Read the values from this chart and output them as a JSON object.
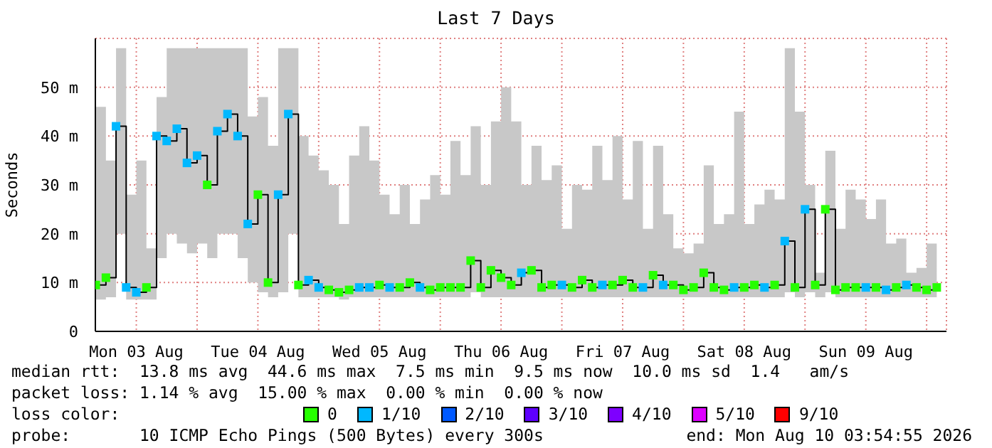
{
  "chart_data": {
    "type": "step",
    "title": "Last 7 Days",
    "ylabel": "Seconds",
    "legend_title": "loss color:",
    "legend": "bottom",
    "grid": true,
    "x": [
      "2026-08-03T04:00",
      "2026-08-03T06:00",
      "2026-08-03T08:00",
      "2026-08-03T10:00",
      "2026-08-03T12:00",
      "2026-08-03T14:00",
      "2026-08-03T16:00",
      "2026-08-03T18:00",
      "2026-08-03T20:00",
      "2026-08-03T22:00",
      "2026-08-04T00:00",
      "2026-08-04T02:00",
      "2026-08-04T04:00",
      "2026-08-04T06:00",
      "2026-08-04T08:00",
      "2026-08-04T10:00",
      "2026-08-04T12:00",
      "2026-08-04T14:00",
      "2026-08-04T16:00",
      "2026-08-04T18:00",
      "2026-08-04T20:00",
      "2026-08-04T22:00",
      "2026-08-05T00:00",
      "2026-08-05T02:00",
      "2026-08-05T04:00",
      "2026-08-05T06:00",
      "2026-08-05T08:00",
      "2026-08-05T10:00",
      "2026-08-05T12:00",
      "2026-08-05T14:00",
      "2026-08-05T16:00",
      "2026-08-05T18:00",
      "2026-08-05T20:00",
      "2026-08-05T22:00",
      "2026-08-06T00:00",
      "2026-08-06T02:00",
      "2026-08-06T04:00",
      "2026-08-06T06:00",
      "2026-08-06T08:00",
      "2026-08-06T10:00",
      "2026-08-06T12:00",
      "2026-08-06T14:00",
      "2026-08-06T16:00",
      "2026-08-06T18:00",
      "2026-08-06T20:00",
      "2026-08-06T22:00",
      "2026-08-07T00:00",
      "2026-08-07T02:00",
      "2026-08-07T04:00",
      "2026-08-07T06:00",
      "2026-08-07T08:00",
      "2026-08-07T10:00",
      "2026-08-07T12:00",
      "2026-08-07T14:00",
      "2026-08-07T16:00",
      "2026-08-07T18:00",
      "2026-08-07T20:00",
      "2026-08-07T22:00",
      "2026-08-08T00:00",
      "2026-08-08T02:00",
      "2026-08-08T04:00",
      "2026-08-08T06:00",
      "2026-08-08T08:00",
      "2026-08-08T10:00",
      "2026-08-08T12:00",
      "2026-08-08T14:00",
      "2026-08-08T16:00",
      "2026-08-08T18:00",
      "2026-08-08T20:00",
      "2026-08-08T22:00",
      "2026-08-09T00:00",
      "2026-08-09T02:00",
      "2026-08-09T04:00",
      "2026-08-09T06:00",
      "2026-08-09T08:00",
      "2026-08-09T10:00",
      "2026-08-09T12:00",
      "2026-08-09T14:00",
      "2026-08-09T16:00",
      "2026-08-09T18:00",
      "2026-08-09T20:00",
      "2026-08-09T22:00",
      "2026-08-10T00:00",
      "2026-08-10T02:00"
    ],
    "xlim": [
      "2026-08-03T03:55",
      "2026-08-10T03:55"
    ],
    "xticks": [
      {
        "value": "2026-08-03T12:00",
        "label": "Mon 03 Aug"
      },
      {
        "value": "2026-08-04T00:00",
        "label": null
      },
      {
        "value": "2026-08-04T12:00",
        "label": "Tue 04 Aug"
      },
      {
        "value": "2026-08-05T00:00",
        "label": null
      },
      {
        "value": "2026-08-05T12:00",
        "label": "Wed 05 Aug"
      },
      {
        "value": "2026-08-06T00:00",
        "label": null
      },
      {
        "value": "2026-08-06T12:00",
        "label": "Thu 06 Aug"
      },
      {
        "value": "2026-08-07T00:00",
        "label": null
      },
      {
        "value": "2026-08-07T12:00",
        "label": "Fri 07 Aug"
      },
      {
        "value": "2026-08-08T00:00",
        "label": null
      },
      {
        "value": "2026-08-08T12:00",
        "label": "Sat 08 Aug"
      },
      {
        "value": "2026-08-09T00:00",
        "label": null
      },
      {
        "value": "2026-08-09T12:00",
        "label": "Sun 09 Aug"
      },
      {
        "value": "2026-08-10T00:00",
        "label": null
      }
    ],
    "ylim": [
      0,
      60
    ],
    "yticks": [
      {
        "value": 0,
        "label": "0"
      },
      {
        "value": 10,
        "label": "10 m"
      },
      {
        "value": 20,
        "label": "20 m"
      },
      {
        "value": 30,
        "label": "30 m"
      },
      {
        "value": 40,
        "label": "40 m"
      },
      {
        "value": 50,
        "label": "50 m"
      }
    ],
    "series": [
      {
        "color": "#000000",
        "values": [
          9.5,
          11,
          42,
          9,
          8,
          9,
          40,
          39,
          41.5,
          34.5,
          36,
          30,
          41,
          44.5,
          40,
          22,
          28,
          10,
          28,
          44.5,
          9.5,
          10.5,
          9,
          8.5,
          8,
          8.5,
          9,
          9,
          9.5,
          9,
          9,
          10,
          9,
          8.5,
          9,
          9,
          9,
          14.5,
          9,
          12.5,
          11,
          9.5,
          12,
          12.5,
          9,
          9.5,
          9.5,
          9,
          10.5,
          9,
          9.5,
          9.5,
          10.5,
          9,
          9,
          11.5,
          9.5,
          9.5,
          8.5,
          9,
          12,
          9,
          8.5,
          9,
          9,
          9.5,
          9,
          9.5,
          18.5,
          9,
          25,
          9.5,
          25,
          8.5,
          9,
          9,
          9,
          9,
          8.5,
          9,
          9.5,
          9,
          8.5,
          9
        ],
        "lower": [
          6.5,
          7,
          20,
          6.5,
          6.5,
          6.5,
          15,
          20,
          18,
          16,
          18,
          15,
          20,
          20,
          15,
          10,
          8,
          7,
          8,
          20,
          7,
          7,
          7,
          7,
          6.5,
          7,
          7,
          7,
          7,
          7,
          7,
          7,
          7,
          7,
          7,
          7,
          7,
          8,
          7,
          7,
          7,
          7,
          7,
          7,
          7,
          7,
          7,
          7,
          7,
          7,
          7,
          7,
          7,
          7,
          7,
          7,
          7,
          7,
          7,
          7,
          7,
          7,
          7,
          7,
          7,
          7,
          7,
          7,
          8,
          7,
          8,
          7,
          8,
          7,
          7,
          7,
          7,
          7,
          7,
          7,
          7,
          7,
          7,
          7
        ],
        "upper": [
          46,
          35,
          58,
          28,
          35,
          17,
          48,
          58,
          58,
          58,
          58,
          58,
          58,
          58,
          58,
          44,
          48,
          38,
          58,
          58,
          40,
          36,
          33,
          30,
          22,
          36,
          42,
          35,
          28,
          24,
          30,
          22,
          27,
          32,
          28,
          39,
          32,
          42,
          30,
          43,
          50,
          43,
          30,
          38,
          31,
          34,
          21,
          30,
          29,
          38,
          31,
          40,
          27,
          39,
          21,
          38,
          24,
          17,
          16,
          18,
          34,
          22,
          24,
          45,
          22,
          26,
          29,
          27,
          58,
          45,
          30,
          12,
          37,
          21,
          29,
          27,
          23,
          27,
          18,
          19,
          12,
          13,
          18,
          28
        ]
      },
      {
        "type": "scatter",
        "marker": "square",
        "name": "0",
        "color": "#26ff00",
        "values": [
          9.5,
          11,
          null,
          null,
          null,
          9,
          null,
          null,
          null,
          null,
          null,
          30,
          null,
          null,
          null,
          null,
          28,
          10,
          null,
          null,
          9.5,
          null,
          null,
          8.5,
          8,
          8.5,
          null,
          null,
          9.5,
          null,
          9,
          10,
          null,
          8.5,
          9,
          9,
          9,
          14.5,
          9,
          12.5,
          11,
          9.5,
          null,
          12.5,
          9,
          9.5,
          null,
          9,
          10.5,
          9,
          null,
          9.5,
          10.5,
          9,
          null,
          11.5,
          null,
          9.5,
          8.5,
          9,
          12,
          9,
          8.5,
          null,
          9,
          9.5,
          null,
          9.5,
          null,
          9,
          null,
          9.5,
          25,
          8.5,
          9,
          9,
          null,
          9,
          null,
          9,
          null,
          9,
          8.5,
          9
        ]
      },
      {
        "type": "scatter",
        "marker": "square",
        "name": "1/10",
        "color": "#00b8ff",
        "values": [
          null,
          null,
          42,
          9,
          8,
          null,
          40,
          39,
          41.5,
          34.5,
          36,
          null,
          41,
          44.5,
          40,
          22,
          null,
          null,
          28,
          44.5,
          null,
          10.5,
          9,
          null,
          null,
          null,
          9,
          9,
          null,
          9,
          null,
          null,
          9,
          null,
          null,
          null,
          null,
          null,
          null,
          null,
          null,
          null,
          12,
          null,
          null,
          null,
          9.5,
          null,
          null,
          null,
          9.5,
          null,
          null,
          null,
          9,
          null,
          9.5,
          null,
          null,
          null,
          null,
          null,
          null,
          9,
          null,
          null,
          9,
          null,
          18.5,
          null,
          25,
          null,
          null,
          null,
          null,
          null,
          9,
          null,
          8.5,
          null,
          9.5,
          null,
          null,
          null
        ]
      },
      {
        "type": "scatter",
        "marker": "square",
        "name": "2/10",
        "color": "#0059ff",
        "values": [
          null,
          null,
          null,
          null,
          null,
          null,
          null,
          null,
          null,
          null,
          null,
          null,
          null,
          null,
          null,
          null,
          null,
          null,
          null,
          null,
          null,
          null,
          null,
          null,
          null,
          null,
          null,
          null,
          null,
          null,
          null,
          null,
          null,
          null,
          null,
          null,
          null,
          null,
          null,
          null,
          null,
          null,
          null,
          null,
          null,
          null,
          null,
          null,
          null,
          null,
          null,
          null,
          null,
          null,
          null,
          null,
          null,
          null,
          null,
          null,
          null,
          null,
          null,
          null,
          null,
          null,
          null,
          null,
          null,
          null,
          null,
          null,
          null,
          null,
          null,
          null,
          null,
          null,
          null,
          null,
          null,
          null,
          null,
          null
        ]
      },
      {
        "type": "scatter",
        "marker": "square",
        "name": "3/10",
        "color": "#5e00ff",
        "values": [
          null,
          null,
          null,
          null,
          null,
          null,
          null,
          null,
          null,
          null,
          null,
          null,
          null,
          null,
          null,
          null,
          null,
          null,
          null,
          null,
          null,
          null,
          null,
          null,
          null,
          null,
          null,
          null,
          null,
          null,
          null,
          null,
          null,
          null,
          null,
          null,
          null,
          null,
          null,
          null,
          null,
          null,
          null,
          null,
          null,
          null,
          null,
          null,
          null,
          null,
          null,
          null,
          null,
          null,
          null,
          null,
          null,
          null,
          null,
          null,
          null,
          null,
          null,
          null,
          null,
          null,
          null,
          null,
          null,
          null,
          null,
          null,
          null,
          null,
          null,
          null,
          null,
          null,
          null,
          null,
          null,
          null,
          null,
          null
        ]
      },
      {
        "type": "scatter",
        "marker": "square",
        "name": "4/10",
        "color": "#7e00ff",
        "values": [
          null,
          null,
          null,
          null,
          null,
          null,
          null,
          null,
          null,
          null,
          null,
          null,
          null,
          null,
          null,
          null,
          null,
          null,
          null,
          null,
          null,
          null,
          null,
          null,
          null,
          null,
          null,
          null,
          null,
          null,
          null,
          null,
          null,
          null,
          null,
          null,
          null,
          null,
          null,
          null,
          null,
          null,
          null,
          null,
          null,
          null,
          null,
          null,
          null,
          null,
          null,
          null,
          null,
          null,
          null,
          null,
          null,
          null,
          null,
          null,
          null,
          null,
          null,
          null,
          null,
          null,
          null,
          null,
          null,
          null,
          null,
          null,
          null,
          null,
          null,
          null,
          null,
          null,
          null,
          null,
          null,
          null,
          null,
          null
        ]
      },
      {
        "type": "scatter",
        "marker": "square",
        "name": "5/10",
        "color": "#dd00ff",
        "values": [
          null,
          null,
          null,
          null,
          null,
          null,
          null,
          null,
          null,
          null,
          null,
          null,
          null,
          null,
          null,
          null,
          null,
          null,
          null,
          null,
          null,
          null,
          null,
          null,
          null,
          null,
          null,
          null,
          null,
          null,
          null,
          null,
          null,
          null,
          null,
          null,
          null,
          null,
          null,
          null,
          null,
          null,
          null,
          null,
          null,
          null,
          null,
          null,
          null,
          null,
          null,
          null,
          null,
          null,
          null,
          null,
          null,
          null,
          null,
          null,
          null,
          null,
          null,
          null,
          null,
          null,
          null,
          null,
          null,
          null,
          null,
          null,
          null,
          null,
          null,
          null,
          null,
          null,
          null,
          null,
          null,
          null,
          null,
          null
        ]
      },
      {
        "type": "scatter",
        "marker": "square",
        "name": "9/10",
        "color": "#ff0000",
        "values": [
          null,
          null,
          null,
          null,
          null,
          null,
          null,
          null,
          null,
          null,
          null,
          null,
          null,
          null,
          null,
          null,
          null,
          null,
          null,
          null,
          null,
          null,
          null,
          null,
          null,
          null,
          null,
          null,
          null,
          null,
          null,
          null,
          null,
          null,
          null,
          null,
          null,
          null,
          null,
          null,
          null,
          null,
          null,
          null,
          null,
          null,
          null,
          null,
          null,
          null,
          null,
          null,
          null,
          null,
          null,
          null,
          null,
          null,
          null,
          null,
          null,
          null,
          null,
          null,
          null,
          null,
          null,
          null,
          null,
          null,
          null,
          null,
          null,
          null,
          null,
          null,
          null,
          null,
          null,
          null,
          null,
          null,
          null,
          null
        ]
      }
    ],
    "annotations": [
      "median rtt:  13.8 ms avg  44.6 ms max  7.5 ms min  9.5 ms now  10.0 ms sd  1.4   am/s",
      "packet loss: 1.14 % avg  15.00 % max  0.00 % min  0.00 % now",
      "probe:       10 ICMP Echo Pings (500 Bytes) every 300s",
      "end: Mon Aug 10 03:54:55 2026"
    ]
  }
}
